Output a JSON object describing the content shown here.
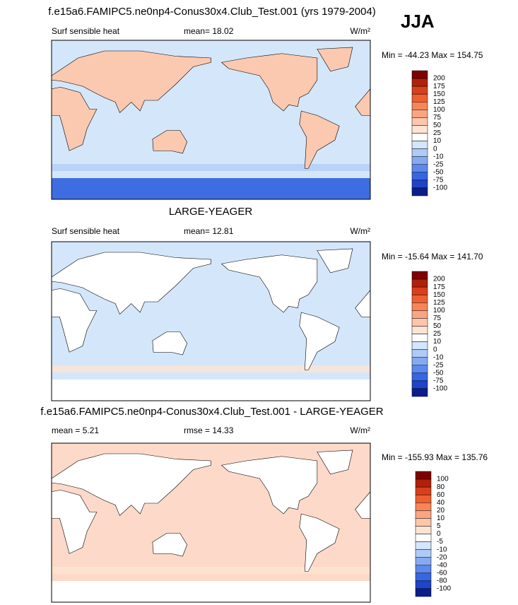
{
  "season": "JJA",
  "panels": [
    {
      "title": "f.e15a6.FAMIPC5.ne0np4-Conus30x4.Club_Test.001 (yrs 1979-2004)",
      "left": "Surf sensible heat",
      "middle": "mean=  18.02",
      "units": "W/m²",
      "minmax": "Min = -44.23 Max = 154.75",
      "ocean": "#d4e6fa",
      "land": "#fbc9b0",
      "polar": "#3d6de0",
      "levels": [
        200,
        175,
        150,
        125,
        100,
        75,
        50,
        25,
        10,
        0,
        -10,
        -25,
        -50,
        -75,
        -100
      ],
      "colors": [
        "#800000",
        "#b0200a",
        "#d8401a",
        "#ef6030",
        "#f78558",
        "#faa582",
        "#fcc6aa",
        "#fde3d2",
        "#ffffff",
        "#d3e6fb",
        "#aecbf7",
        "#86aaf2",
        "#5d88ec",
        "#3766e3",
        "#1f44c8",
        "#0a1f8c"
      ]
    },
    {
      "title": "LARGE-YEAGER",
      "left": "Surf sensible heat",
      "middle": "mean=  12.81",
      "units": "W/m²",
      "minmax": "Min = -15.64 Max = 141.70",
      "ocean": "#d4e6fa",
      "land": "#ffffff",
      "polar": "#ffffff",
      "levels": [
        200,
        175,
        150,
        125,
        100,
        75,
        50,
        25,
        10,
        0,
        -10,
        -25,
        -50,
        -75,
        -100
      ],
      "colors": [
        "#800000",
        "#b0200a",
        "#d8401a",
        "#ef6030",
        "#f78558",
        "#faa582",
        "#fcc6aa",
        "#fde3d2",
        "#ffffff",
        "#d3e6fb",
        "#aecbf7",
        "#86aaf2",
        "#5d88ec",
        "#3766e3",
        "#1f44c8",
        "#0a1f8c"
      ]
    },
    {
      "title": "f.e15a6.FAMIPC5.ne0np4-Conus30x4.Club_Test.001 - LARGE-YEAGER",
      "left": "mean =   5.21",
      "middle": "rmse =  14.33",
      "units": "W/m²",
      "minmax": "Min = -155.93 Max = 135.76",
      "ocean": "#fcd9c8",
      "land": "#ffffff",
      "polar": "#ffffff",
      "levels": [
        100,
        80,
        60,
        40,
        20,
        10,
        5,
        0,
        -5,
        -10,
        -20,
        -40,
        -60,
        -80,
        -100
      ],
      "colors": [
        "#800000",
        "#b0200a",
        "#d8401a",
        "#ef6030",
        "#f78558",
        "#faa582",
        "#fcc6aa",
        "#fde3d2",
        "#ffffff",
        "#d3e6fb",
        "#aecbf7",
        "#86aaf2",
        "#5d88ec",
        "#3766e3",
        "#1f44c8",
        "#0a1f8c"
      ]
    }
  ]
}
